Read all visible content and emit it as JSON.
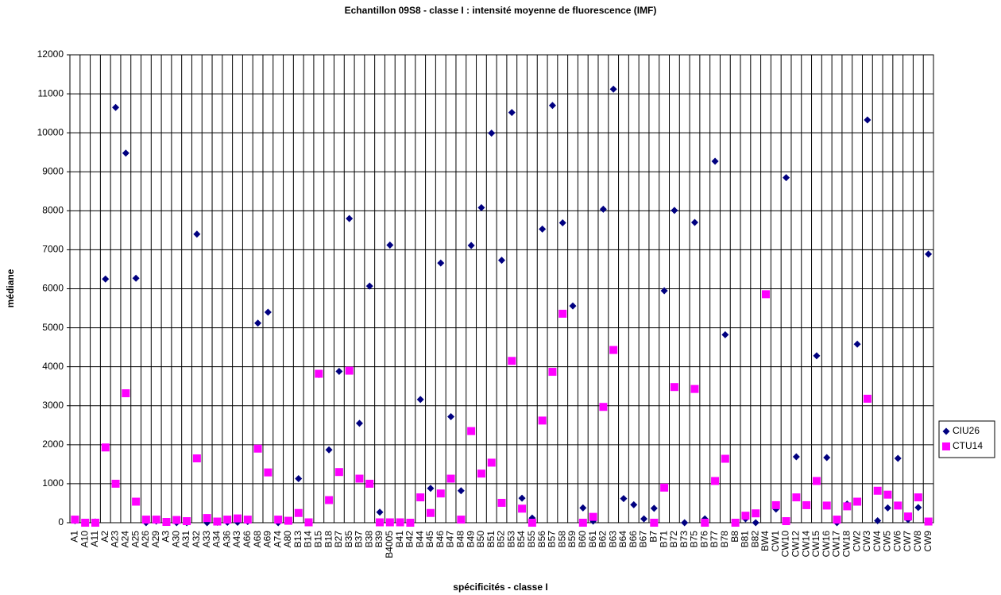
{
  "chart_data": {
    "type": "scatter",
    "title": "Echantillon 09S8 - classe I : intensité moyenne de fluorescence (IMF)",
    "x_label": "spécificités - classe I",
    "y_label": "médiane",
    "categories": [
      "A1",
      "A10",
      "A11",
      "A2",
      "A23",
      "A24",
      "A25",
      "A26",
      "A29",
      "A3",
      "A30",
      "A31",
      "A32",
      "A33",
      "A34",
      "A36",
      "A43",
      "A66",
      "A68",
      "A69",
      "A74",
      "A80",
      "B13",
      "B14",
      "B15",
      "B18",
      "B27",
      "B35",
      "B37",
      "B38",
      "B39",
      "B4005",
      "B41",
      "B42",
      "B44",
      "B45",
      "B46",
      "B47",
      "B48",
      "B49",
      "B50",
      "B51",
      "B52",
      "B53",
      "B54",
      "B55",
      "B56",
      "B57",
      "B58",
      "B59",
      "B60",
      "B61",
      "B62",
      "B63",
      "B64",
      "B66",
      "B67",
      "B7",
      "B71",
      "B72",
      "B73",
      "B75",
      "B76",
      "B77",
      "B78",
      "B8",
      "B81",
      "B82",
      "BW4",
      "CW1",
      "CW10",
      "CW12",
      "CW14",
      "CW15",
      "CW16",
      "CW17",
      "CW18",
      "CW2",
      "CW3",
      "CW4",
      "CW5",
      "CW6",
      "CW7",
      "CW8",
      "CW9"
    ],
    "series": [
      {
        "name": "CIU26",
        "color": "#000080",
        "marker": "diamond",
        "values": [
          50,
          0,
          20,
          6250,
          10650,
          9480,
          6270,
          0,
          40,
          10,
          0,
          0,
          7400,
          0,
          10,
          10,
          10,
          30,
          5120,
          5400,
          0,
          50,
          1130,
          0,
          3800,
          1870,
          3880,
          7800,
          2550,
          6070,
          270,
          7120,
          0,
          0,
          3160,
          880,
          6660,
          2720,
          820,
          7110,
          8080,
          9990,
          6730,
          10520,
          630,
          120,
          7530,
          10700,
          7690,
          5560,
          380,
          40,
          8040,
          11120,
          620,
          460,
          100,
          370,
          5950,
          8010,
          0,
          7700,
          100,
          9270,
          4820,
          0,
          100,
          0,
          null,
          350,
          8850,
          1690,
          450,
          4280,
          1670,
          0,
          480,
          4580,
          10330,
          50,
          380,
          1650,
          80,
          390,
          6890
        ]
      },
      {
        "name": "CTU14",
        "color": "#ff00ff",
        "marker": "square",
        "values": [
          80,
          0,
          0,
          1930,
          1000,
          3320,
          540,
          80,
          80,
          20,
          70,
          40,
          1650,
          120,
          30,
          80,
          110,
          80,
          1900,
          1290,
          80,
          50,
          250,
          10,
          3820,
          580,
          1300,
          3900,
          1130,
          1000,
          10,
          10,
          10,
          0,
          650,
          250,
          750,
          1130,
          80,
          2350,
          1260,
          1540,
          510,
          4150,
          360,
          0,
          2620,
          3870,
          5360,
          null,
          0,
          150,
          2970,
          4430,
          null,
          null,
          null,
          0,
          900,
          3480,
          null,
          3430,
          0,
          1070,
          1640,
          0,
          180,
          240,
          5860,
          450,
          40,
          650,
          450,
          1070,
          440,
          80,
          420,
          540,
          3180,
          820,
          720,
          440,
          160,
          650,
          30
        ]
      }
    ],
    "ylim": [
      0,
      12000
    ],
    "yticks": [
      0,
      1000,
      2000,
      3000,
      4000,
      5000,
      6000,
      7000,
      8000,
      9000,
      10000,
      11000,
      12000
    ],
    "grid": true,
    "legend": "right"
  }
}
